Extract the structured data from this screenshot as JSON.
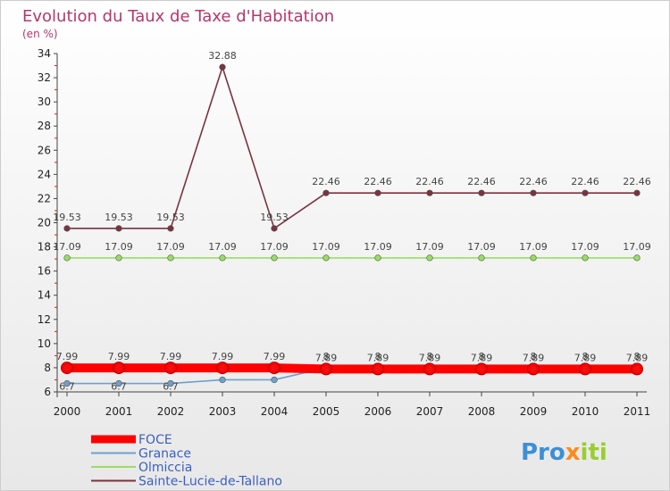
{
  "chart_data": {
    "type": "line",
    "title": "Evolution du Taux de Taxe d'Habitation",
    "subtitle": "(en %)",
    "x": [
      "2000",
      "2001",
      "2002",
      "2003",
      "2004",
      "2005",
      "2006",
      "2007",
      "2008",
      "2009",
      "2010",
      "2011"
    ],
    "ylim": [
      6,
      34
    ],
    "yticks": [
      "6",
      "8",
      "10",
      "12",
      "14",
      "16",
      "18",
      "20",
      "22",
      "24",
      "26",
      "28",
      "30",
      "32",
      "34"
    ],
    "series": [
      {
        "name": "FOCE",
        "color": "#ff0000",
        "values": [
          7.99,
          7.99,
          7.99,
          7.99,
          7.99,
          7.89,
          7.89,
          7.89,
          7.89,
          7.89,
          7.89,
          7.89
        ],
        "labels": [
          "7.99",
          "7.99",
          "7.99",
          "7.99",
          "7.99",
          "7.89",
          "7.89",
          "7.89",
          "7.89",
          "7.89",
          "7.89",
          "7.89"
        ]
      },
      {
        "name": "Granace",
        "color": "#6ea0cc",
        "values": [
          6.7,
          6.7,
          6.7,
          7,
          7,
          8,
          8,
          8,
          8,
          8,
          8,
          8
        ],
        "labels": [
          "6.7",
          "6.7",
          "6.7",
          "",
          "",
          "8",
          "8",
          "8",
          "8",
          "8",
          "8",
          "8"
        ]
      },
      {
        "name": "Olmiccia",
        "color": "#99dd66",
        "values": [
          17.09,
          17.09,
          17.09,
          17.09,
          17.09,
          17.09,
          17.09,
          17.09,
          17.09,
          17.09,
          17.09,
          17.09
        ],
        "labels": [
          "17.09",
          "17.09",
          "17.09",
          "17.09",
          "17.09",
          "17.09",
          "17.09",
          "17.09",
          "17.09",
          "17.09",
          "17.09",
          "17.09"
        ]
      },
      {
        "name": "Sainte-Lucie-de-Tallano",
        "color": "#7a3340",
        "values": [
          19.53,
          19.53,
          19.53,
          32.88,
          19.53,
          22.46,
          22.46,
          22.46,
          22.46,
          22.46,
          22.46,
          22.46
        ],
        "labels": [
          "19.53",
          "19.53",
          "19.53",
          "32.88",
          "19.53",
          "22.46",
          "22.46",
          "22.46",
          "22.46",
          "22.46",
          "22.46",
          "22.46"
        ]
      }
    ],
    "legend_position": "bottom-left",
    "grid": false
  },
  "logo": {
    "part1": "Pro",
    "part2": "x",
    "part3": "iti"
  }
}
